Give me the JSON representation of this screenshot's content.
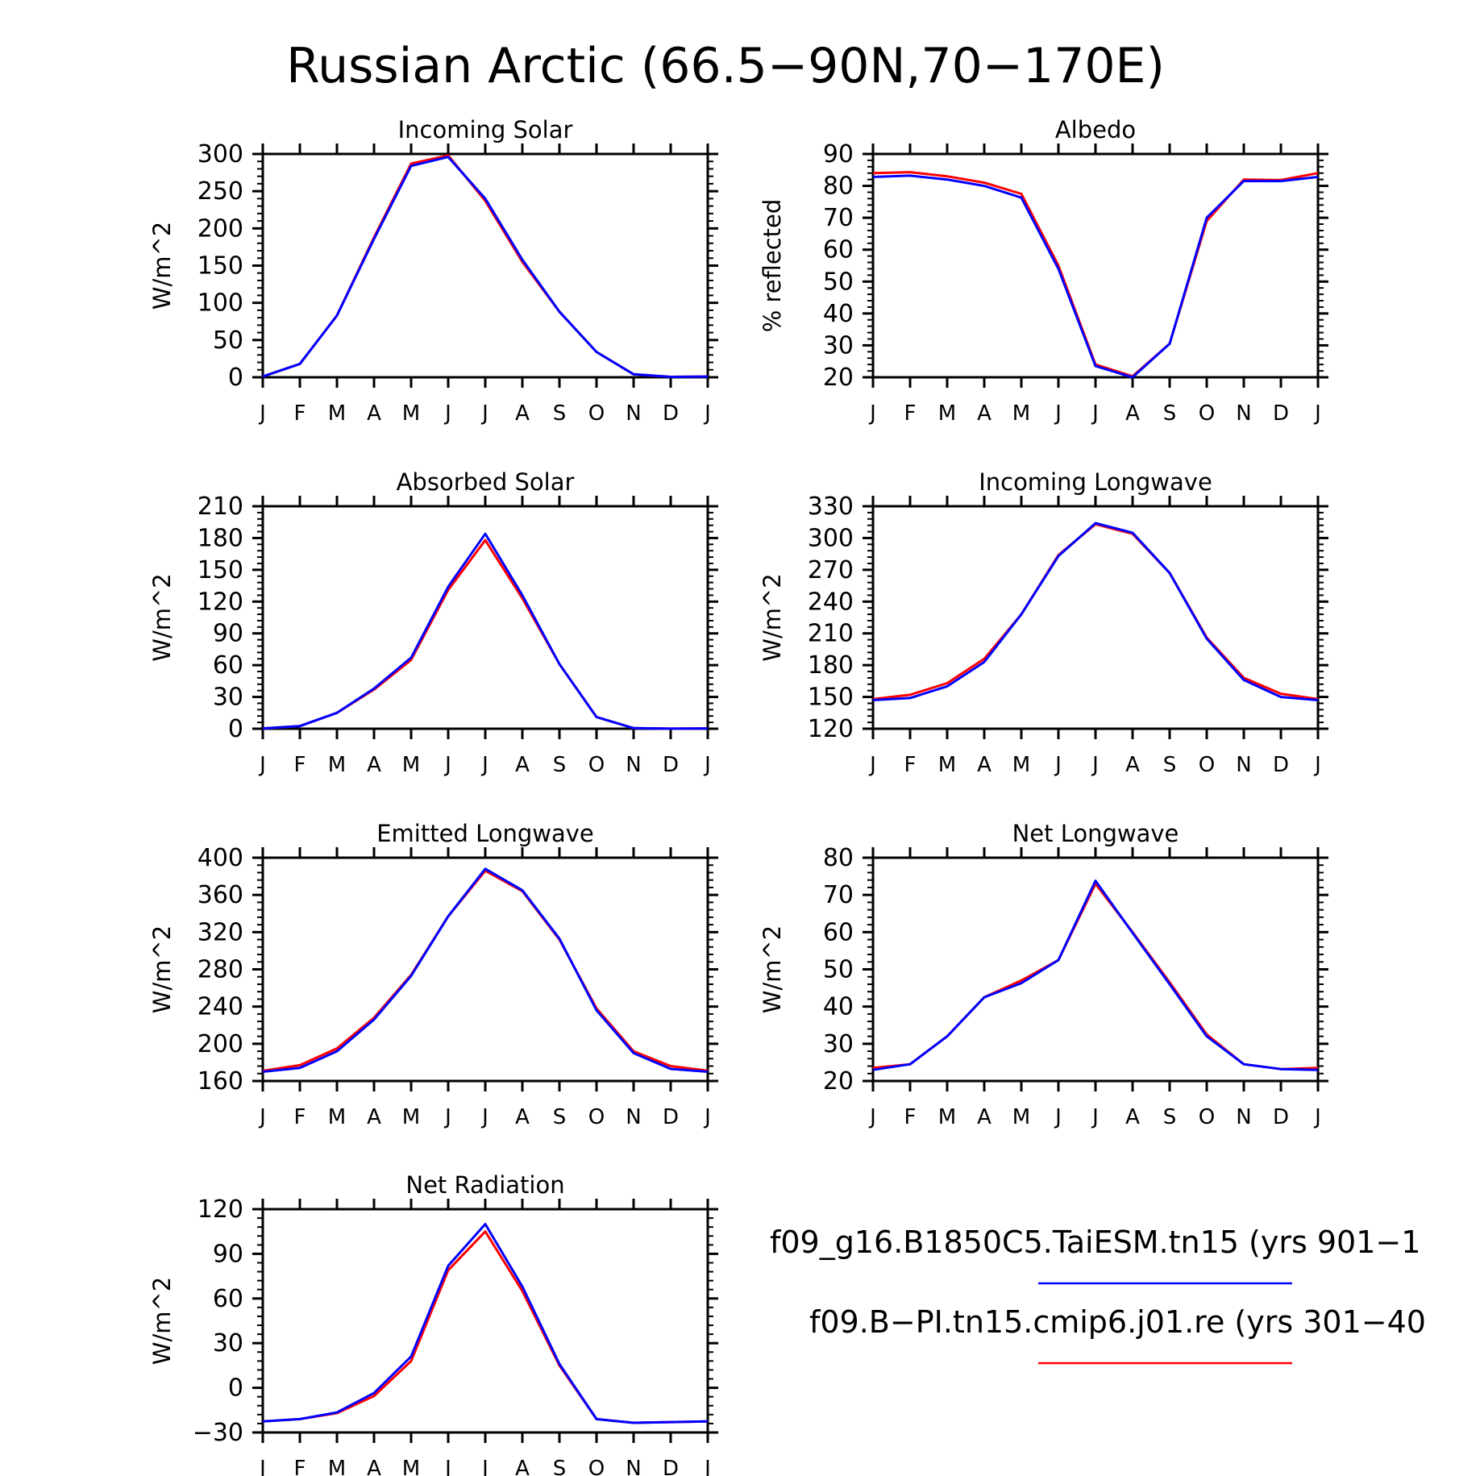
{
  "page": {
    "title": "Russian Arctic (66.5−90N,70−170E)"
  },
  "colors": {
    "series_1": "#0000ff",
    "series_2": "#ff0000",
    "axes": "#000000"
  },
  "legend": {
    "entries": [
      {
        "label": "f09_g16.B1850C5.TaiESM.tn15 (yrs 901−1",
        "color": "#0000ff"
      },
      {
        "label": "f09.B−PI.tn15.cmip6.j01.re (yrs 301−40",
        "color": "#ff0000"
      }
    ]
  },
  "chart_data": [
    {
      "type": "line",
      "title": "Incoming Solar",
      "ylabel": "W/m^2",
      "xlabel": "",
      "categories": [
        "J",
        "F",
        "M",
        "A",
        "M",
        "J",
        "J",
        "A",
        "S",
        "O",
        "N",
        "D",
        "J"
      ],
      "ylim": [
        0,
        300
      ],
      "yticks": [
        0,
        50,
        100,
        150,
        200,
        250,
        300
      ],
      "grid": false,
      "series": [
        {
          "color": "#ff0000",
          "values": [
            1,
            18,
            83,
            188,
            287,
            298,
            237,
            155,
            88,
            34,
            4,
            0.5,
            1
          ]
        },
        {
          "color": "#0000ff",
          "values": [
            1,
            18,
            83,
            186,
            284,
            296,
            240,
            158,
            88,
            34,
            4,
            0.5,
            1
          ]
        }
      ]
    },
    {
      "type": "line",
      "title": "Albedo",
      "ylabel": "% reflected",
      "xlabel": "",
      "categories": [
        "J",
        "F",
        "M",
        "A",
        "M",
        "J",
        "J",
        "A",
        "S",
        "O",
        "N",
        "D",
        "J"
      ],
      "ylim": [
        20,
        90
      ],
      "yticks": [
        20,
        30,
        40,
        50,
        60,
        70,
        80,
        90
      ],
      "grid": false,
      "series": [
        {
          "color": "#ff0000",
          "values": [
            84,
            84.3,
            83,
            81,
            77.5,
            55,
            24,
            20.3,
            30.5,
            69,
            82,
            81.8,
            84
          ]
        },
        {
          "color": "#0000ff",
          "values": [
            82.8,
            83.2,
            82,
            80,
            76.3,
            54,
            23.5,
            20,
            30.5,
            70,
            81.5,
            81.5,
            82.8
          ]
        }
      ]
    },
    {
      "type": "line",
      "title": "Absorbed Solar",
      "ylabel": "W/m^2",
      "xlabel": "",
      "categories": [
        "J",
        "F",
        "M",
        "A",
        "M",
        "J",
        "J",
        "A",
        "S",
        "O",
        "N",
        "D",
        "J"
      ],
      "ylim": [
        0,
        210
      ],
      "yticks": [
        0,
        30,
        60,
        90,
        120,
        150,
        180,
        210
      ],
      "grid": false,
      "series": [
        {
          "color": "#ff0000",
          "values": [
            0.3,
            2.5,
            15,
            37,
            65,
            131,
            178,
            123,
            61,
            11,
            0.5,
            0.1,
            0.3
          ]
        },
        {
          "color": "#0000ff",
          "values": [
            0.3,
            2.5,
            15,
            38,
            67,
            134,
            184,
            126,
            61,
            11,
            0.5,
            0.1,
            0.3
          ]
        }
      ]
    },
    {
      "type": "line",
      "title": "Incoming Longwave",
      "ylabel": "W/m^2",
      "xlabel": "",
      "categories": [
        "J",
        "F",
        "M",
        "A",
        "M",
        "J",
        "J",
        "A",
        "S",
        "O",
        "N",
        "D",
        "J"
      ],
      "ylim": [
        120,
        330
      ],
      "yticks": [
        120,
        150,
        180,
        210,
        240,
        270,
        300,
        330
      ],
      "grid": false,
      "series": [
        {
          "color": "#ff0000",
          "values": [
            148,
            152,
            163,
            186,
            228,
            284,
            313,
            304,
            267,
            206,
            168,
            153,
            148
          ]
        },
        {
          "color": "#0000ff",
          "values": [
            147,
            149,
            160,
            183,
            228,
            283,
            314,
            305,
            267,
            205,
            166,
            150,
            147
          ]
        }
      ]
    },
    {
      "type": "line",
      "title": "Emitted Longwave",
      "ylabel": "W/m^2",
      "xlabel": "",
      "categories": [
        "J",
        "F",
        "M",
        "A",
        "M",
        "J",
        "J",
        "A",
        "S",
        "O",
        "N",
        "D",
        "J"
      ],
      "ylim": [
        160,
        400
      ],
      "yticks": [
        160,
        200,
        240,
        280,
        320,
        360,
        400
      ],
      "grid": false,
      "series": [
        {
          "color": "#ff0000",
          "values": [
            171,
            177,
            195,
            228,
            274,
            337,
            386,
            364,
            312,
            238,
            192,
            176,
            171
          ]
        },
        {
          "color": "#0000ff",
          "values": [
            170,
            174,
            192,
            226,
            273,
            337,
            388,
            365,
            313,
            236,
            190,
            173,
            170
          ]
        }
      ]
    },
    {
      "type": "line",
      "title": "Net Longwave",
      "ylabel": "W/m^2",
      "xlabel": "",
      "categories": [
        "J",
        "F",
        "M",
        "A",
        "M",
        "J",
        "J",
        "A",
        "S",
        "O",
        "N",
        "D",
        "J"
      ],
      "ylim": [
        20,
        80
      ],
      "yticks": [
        20,
        30,
        40,
        50,
        60,
        70,
        80
      ],
      "grid": false,
      "series": [
        {
          "color": "#ff0000",
          "values": [
            23.5,
            24.5,
            32,
            42.5,
            47,
            52.5,
            73,
            60,
            46.5,
            32.5,
            24.5,
            23.2,
            23.5
          ]
        },
        {
          "color": "#0000ff",
          "values": [
            23,
            24.5,
            32,
            42.5,
            46.3,
            52.5,
            73.8,
            59.8,
            46,
            32,
            24.5,
            23.2,
            23
          ]
        }
      ]
    },
    {
      "type": "line",
      "title": "Net Radiation",
      "ylabel": "W/m^2",
      "xlabel": "",
      "categories": [
        "J",
        "F",
        "M",
        "A",
        "M",
        "J",
        "J",
        "A",
        "S",
        "O",
        "N",
        "D",
        "J"
      ],
      "ylim": [
        -30,
        120
      ],
      "yticks": [
        -30,
        0,
        30,
        60,
        90,
        120
      ],
      "grid": false,
      "series": [
        {
          "color": "#ff0000",
          "values": [
            -22.5,
            -21,
            -17,
            -5.5,
            18,
            79,
            105,
            65,
            15,
            -21,
            -23.5,
            -23,
            -22.5
          ]
        },
        {
          "color": "#0000ff",
          "values": [
            -22.5,
            -21,
            -16.5,
            -3.5,
            21,
            82,
            110,
            68,
            16,
            -21,
            -23.5,
            -23,
            -22.5
          ]
        }
      ]
    }
  ]
}
